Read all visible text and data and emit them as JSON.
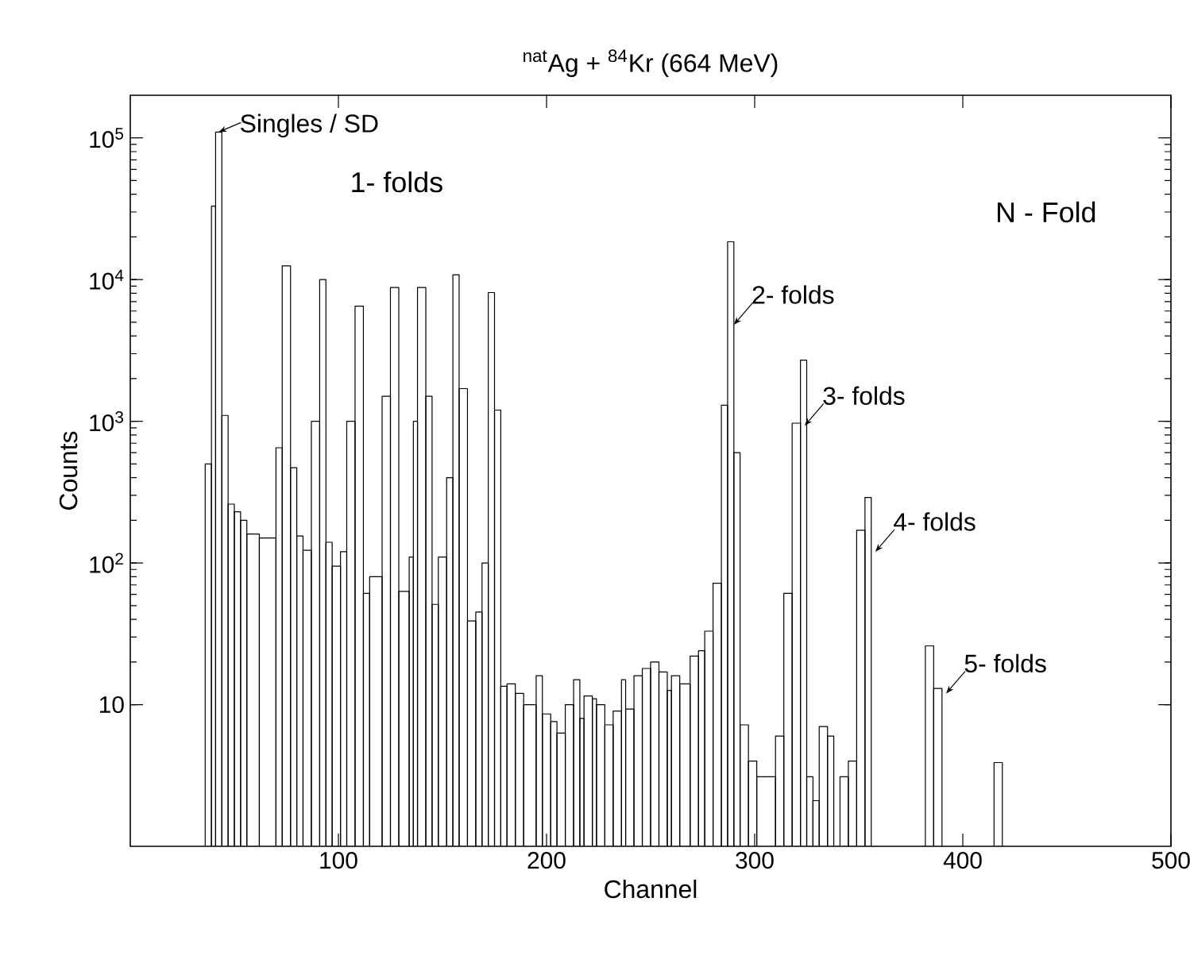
{
  "chart_data": {
    "type": "histogram",
    "title": "$^{nat}$Ag + $^{84}$Kr (664 MeV)",
    "xlabel": "Channel",
    "ylabel": "Counts",
    "log": true,
    "color": "#000000",
    "xlim": [
      0,
      500
    ],
    "xticks": [
      100,
      200,
      300,
      400,
      500
    ],
    "ylim": [
      1,
      200000
    ],
    "yticks": [
      10,
      {
        "value": 100,
        "label": "10$^{2}$"
      },
      {
        "value": 1000,
        "label": "10$^{3}$"
      },
      {
        "value": 10000,
        "label": "10$^{4}$"
      },
      {
        "value": 100000,
        "label": "10$^{5}$"
      }
    ],
    "bins": [
      36,
      39,
      41,
      44,
      47,
      50,
      53,
      56,
      62,
      70,
      73,
      77,
      80,
      83,
      87,
      91,
      94,
      97,
      101,
      104,
      108,
      112,
      115,
      121,
      125,
      129,
      134,
      136,
      138,
      142,
      145,
      148,
      152,
      155,
      158,
      162,
      166,
      169,
      172,
      175,
      178,
      181,
      185,
      189,
      195,
      198,
      202,
      205,
      209,
      213,
      216,
      218,
      222,
      224,
      228,
      232,
      236,
      238,
      242,
      246,
      250,
      254,
      258,
      260,
      264,
      269,
      273,
      276,
      280,
      284,
      287,
      290,
      293,
      297,
      301,
      310,
      314,
      318,
      322,
      325,
      328,
      331,
      335,
      338,
      341,
      345,
      349,
      353,
      356,
      382,
      386,
      390,
      415,
      419
    ],
    "values": [
      500,
      33000,
      110000,
      1100,
      260,
      230,
      200,
      160,
      150,
      650,
      12500,
      470,
      155,
      123,
      1000,
      10000,
      140,
      95,
      120,
      1000,
      6500,
      61,
      80,
      1500,
      8800,
      63,
      110,
      1000,
      8800,
      1500,
      51,
      110,
      400,
      10800,
      1700,
      39,
      45,
      100,
      8100,
      1200,
      13.5,
      14,
      12,
      10,
      16,
      8.6,
      7.6,
      6.3,
      10,
      15,
      8,
      11.5,
      11,
      10,
      7.2,
      9,
      15,
      9.3,
      16,
      18,
      20,
      17,
      12.6,
      16,
      14,
      22,
      24,
      33,
      72,
      1300,
      18500,
      600,
      7.2,
      4,
      3.1,
      6,
      61,
      970,
      2700,
      3.1,
      2.1,
      7,
      6,
      null,
      3.1,
      4,
      170,
      290,
      null,
      26,
      13,
      null,
      3.9
    ],
    "annotations": [
      {
        "text": "Singles / SD",
        "x": 42.5,
        "y": 110000
      },
      "1- folds",
      {
        "text": "2- folds",
        "x": 290,
        "y": 4800
      },
      {
        "text": "3- folds",
        "x": 324,
        "y": 930
      },
      {
        "text": "4- folds",
        "x": 358,
        "y": 120
      },
      {
        "text": "5- folds",
        "x": 392,
        "y": 12
      },
      "N - Fold"
    ]
  }
}
